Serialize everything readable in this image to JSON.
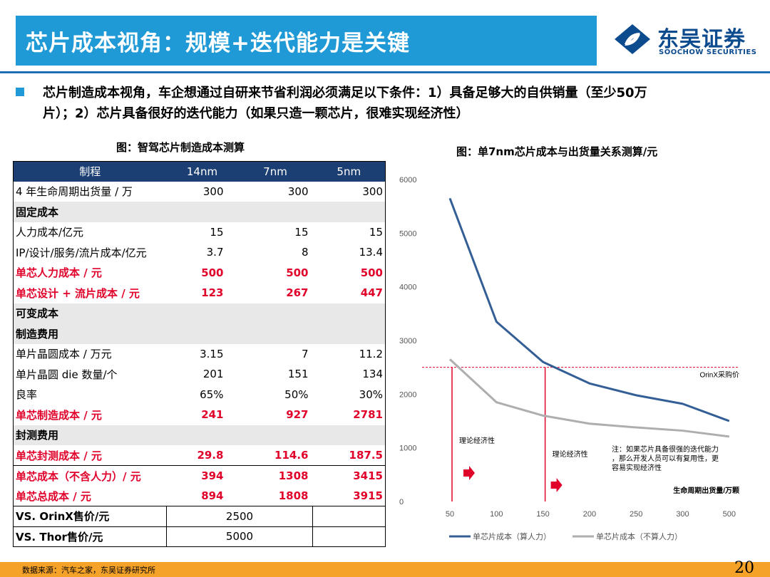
{
  "header": {
    "title": "芯片成本视角：规模+迭代能力是关键",
    "logo_cn": "东吴证券",
    "logo_en": "SOOCHOW SECURITIES"
  },
  "bullet": {
    "line1": "芯片制造成本视角，车企想通过自研来节省利润必须满足以下条件：1）具备足够大的自供销量（至少50万",
    "line2": "片）；2）芯片具备很好的迭代能力（如果只造一颗芯片，很难实现经济性）"
  },
  "table_caption": "图：智驾芯片制造成本测算",
  "chart_caption": "图：单7nm芯片成本与出货量关系测算/元",
  "table": {
    "headers": [
      "制程",
      "14nm",
      "7nm",
      "5nm"
    ],
    "rows": [
      {
        "label": "4 年生命周期出货量 / 万",
        "v": [
          "300",
          "300",
          "300"
        ],
        "style": ""
      },
      {
        "label": "固定成本",
        "v": [
          "",
          "",
          ""
        ],
        "style": "sec"
      },
      {
        "label": "人力成本/亿元",
        "v": [
          "15",
          "15",
          "15"
        ],
        "style": ""
      },
      {
        "label": "IP/设计/服务/流片成本/亿元",
        "v": [
          "3.7",
          "8",
          "13.4"
        ],
        "style": ""
      },
      {
        "label": "单芯人力成本 / 元",
        "v": [
          "500",
          "500",
          "500"
        ],
        "style": "red"
      },
      {
        "label": "单芯设计 + 流片成本 / 元",
        "v": [
          "123",
          "267",
          "447"
        ],
        "style": "red"
      },
      {
        "label": "可变成本",
        "v": [
          "",
          "",
          ""
        ],
        "style": "sec"
      },
      {
        "label": "制造费用",
        "v": [
          "",
          "",
          ""
        ],
        "style": "sec"
      },
      {
        "label": "单片晶圆成本 / 万元",
        "v": [
          "3.15",
          "7",
          "11.2"
        ],
        "style": ""
      },
      {
        "label": "单片晶圆 die 数量/个",
        "v": [
          "201",
          "151",
          "134"
        ],
        "style": ""
      },
      {
        "label": "良率",
        "v": [
          "65%",
          "50%",
          "30%"
        ],
        "style": ""
      },
      {
        "label": "单芯制造成本 / 元",
        "v": [
          "241",
          "927",
          "2781"
        ],
        "style": "red"
      },
      {
        "label": "封测费用",
        "v": [
          "",
          "",
          ""
        ],
        "style": "sec"
      },
      {
        "label": "单芯封测成本 / 元",
        "v": [
          "29.8",
          "114.6",
          "187.5"
        ],
        "style": "red"
      },
      {
        "label": "单芯成本（不含人力）/ 元",
        "v": [
          "394",
          "1308",
          "3415"
        ],
        "style": "red bt"
      },
      {
        "label": "单芯总成本 / 元",
        "v": [
          "894",
          "1808",
          "3915"
        ],
        "style": "red"
      }
    ],
    "vs_rows": [
      {
        "label": "VS. OrinX售价/元",
        "value": "2500"
      },
      {
        "label": "VS. Thor售价/元",
        "value": "5000"
      }
    ]
  },
  "chart_data": {
    "type": "line",
    "categories": [
      "50",
      "100",
      "150",
      "200",
      "250",
      "300",
      "500"
    ],
    "series": [
      {
        "name": "单芯片成本（算人力）",
        "color": "#345f96",
        "values": [
          5650,
          3350,
          2600,
          2200,
          1980,
          1820,
          1500
        ]
      },
      {
        "name": "单芯片成本（不算人力）",
        "color": "#aeaeae",
        "values": [
          2650,
          1850,
          1600,
          1450,
          1380,
          1320,
          1210
        ]
      }
    ],
    "ylim": [
      0,
      6000
    ],
    "yticks": [
      0,
      1000,
      2000,
      3000,
      4000,
      5000,
      6000
    ],
    "reference_line": {
      "label": "OrinX采购价",
      "value": 2500,
      "color": "#e0002a"
    },
    "markers": [
      {
        "category": "50",
        "label": "理论经济性"
      },
      {
        "category": "150",
        "label": "理论经济性"
      }
    ],
    "note_lines": [
      "注：如果芯片具备很强的迭代能力",
      "，那么开发人员可以有复用性，更",
      "容易实现经济性"
    ],
    "xlabel": "生命周期出货量/万颗",
    "grid": false,
    "legend": "bottom"
  },
  "footer": {
    "source": "数据来源：汽车之家，东吴证券研究所",
    "page": "20"
  }
}
